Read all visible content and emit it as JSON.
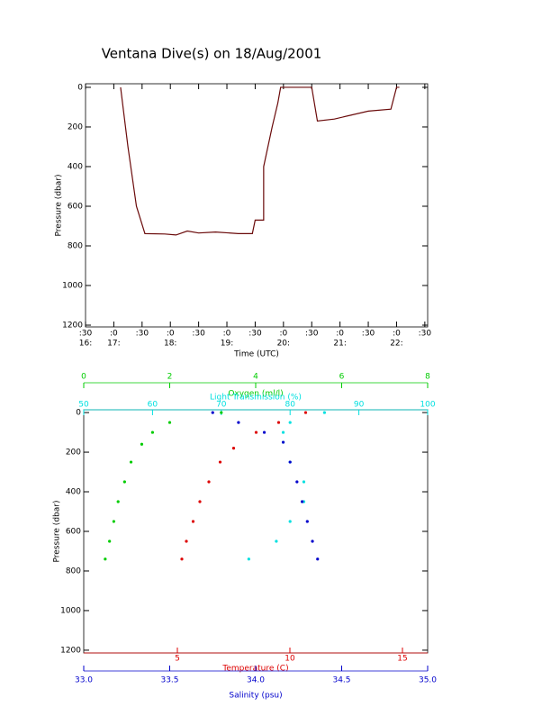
{
  "chart_data": [
    {
      "type": "line",
      "title": "Ventana Dive(s) on 18/Aug/2001",
      "xlabel": "Time (UTC)",
      "ylabel": "Pressure (dbar)",
      "xlim": [
        16.5,
        22.55
      ],
      "ylim": [
        -18,
        1209
      ],
      "y_inverted": true,
      "xticks": [
        {
          "value": 16.5,
          "label": ":30",
          "sublabel": "16:"
        },
        {
          "value": 17,
          "label": ":0",
          "sublabel": "17:"
        },
        {
          "value": 17.5,
          "label": ":30"
        },
        {
          "value": 18,
          "label": ":0",
          "sublabel": "18:"
        },
        {
          "value": 18.5,
          "label": ":30"
        },
        {
          "value": 19,
          "label": ":0",
          "sublabel": "19:"
        },
        {
          "value": 19.5,
          "label": ":30"
        },
        {
          "value": 20,
          "label": ":0",
          "sublabel": "20:"
        },
        {
          "value": 20.5,
          "label": ":30"
        },
        {
          "value": 21,
          "label": ":0",
          "sublabel": "21:"
        },
        {
          "value": 21.5,
          "label": ":30"
        },
        {
          "value": 22,
          "label": ":0",
          "sublabel": "22:"
        },
        {
          "value": 22.5,
          "label": ":30"
        }
      ],
      "yticks": [
        0,
        200,
        400,
        600,
        800,
        1000,
        1200
      ],
      "series": [
        {
          "color": "#6a0a0a",
          "x": [
            17.12,
            17.25,
            17.4,
            17.55,
            17.9,
            18.1,
            18.3,
            18.5,
            18.8,
            19.2,
            19.45,
            19.5,
            19.65,
            19.65,
            19.8,
            19.9,
            19.95,
            20.5,
            20.6,
            20.9,
            21.2,
            21.5,
            21.9,
            22.0,
            22.05
          ],
          "values": [
            0,
            300,
            600,
            738,
            740,
            745,
            725,
            735,
            730,
            738,
            738,
            670,
            670,
            400,
            200,
            80,
            0,
            0,
            170,
            160,
            140,
            120,
            110,
            0,
            0
          ]
        }
      ]
    },
    {
      "type": "scatter",
      "ylabel": "Pressure (dbar)",
      "ylim": [
        -14,
        1214
      ],
      "y_inverted": true,
      "yticks": [
        0,
        200,
        400,
        600,
        800,
        1000,
        1200
      ],
      "x_axes": [
        {
          "label": "Oxygen (ml/l)",
          "color": "#00cc00",
          "xlim": [
            0,
            8
          ],
          "xticks": [
            0,
            2,
            4,
            6,
            8
          ]
        },
        {
          "label": "Light Transmission (%)",
          "color": "#00e0e0",
          "xlim": [
            50,
            100
          ],
          "xticks": [
            50,
            60,
            70,
            80,
            90,
            100
          ]
        },
        {
          "label": "Temperature (C)",
          "color": "#dd0000",
          "xlim": [
            0.84,
            16.12
          ],
          "xticks": [
            5,
            10,
            15
          ]
        },
        {
          "label": "Salinity (psu)",
          "color": "#0000cc",
          "xlim": [
            33,
            35
          ],
          "xticks": [
            {
              "value": 33,
              "label": "33.0"
            },
            {
              "value": 33.5,
              "label": "33.5"
            },
            {
              "value": 34,
              "label": "34.0"
            },
            {
              "value": 34.5,
              "label": "34.5"
            },
            {
              "value": 35,
              "label": "35.0"
            }
          ]
        }
      ],
      "series": [
        {
          "color": "#00cc00",
          "pressure": [
            0,
            50,
            100,
            160,
            250,
            350,
            450,
            550,
            650,
            740
          ],
          "values": [
            3.2,
            2.0,
            1.6,
            1.35,
            1.1,
            0.95,
            0.8,
            0.7,
            0.6,
            0.5
          ]
        },
        {
          "color": "#00e0e0",
          "pressure": [
            0,
            50,
            100,
            150,
            250,
            350,
            450,
            550,
            650,
            740
          ],
          "values": [
            85,
            80,
            79,
            79,
            80,
            82,
            82,
            80,
            78,
            74
          ]
        },
        {
          "color": "#dd0000",
          "pressure": [
            0,
            50,
            100,
            180,
            250,
            350,
            450,
            550,
            650,
            740
          ],
          "values": [
            10.7,
            9.5,
            8.5,
            7.5,
            6.9,
            6.4,
            6.0,
            5.7,
            5.4,
            5.2
          ]
        },
        {
          "color": "#0000cc",
          "pressure": [
            0,
            50,
            100,
            150,
            250,
            350,
            450,
            550,
            650,
            740
          ],
          "values": [
            33.75,
            33.9,
            34.05,
            34.16,
            34.2,
            34.24,
            34.27,
            34.3,
            34.33,
            34.36
          ]
        }
      ]
    }
  ]
}
